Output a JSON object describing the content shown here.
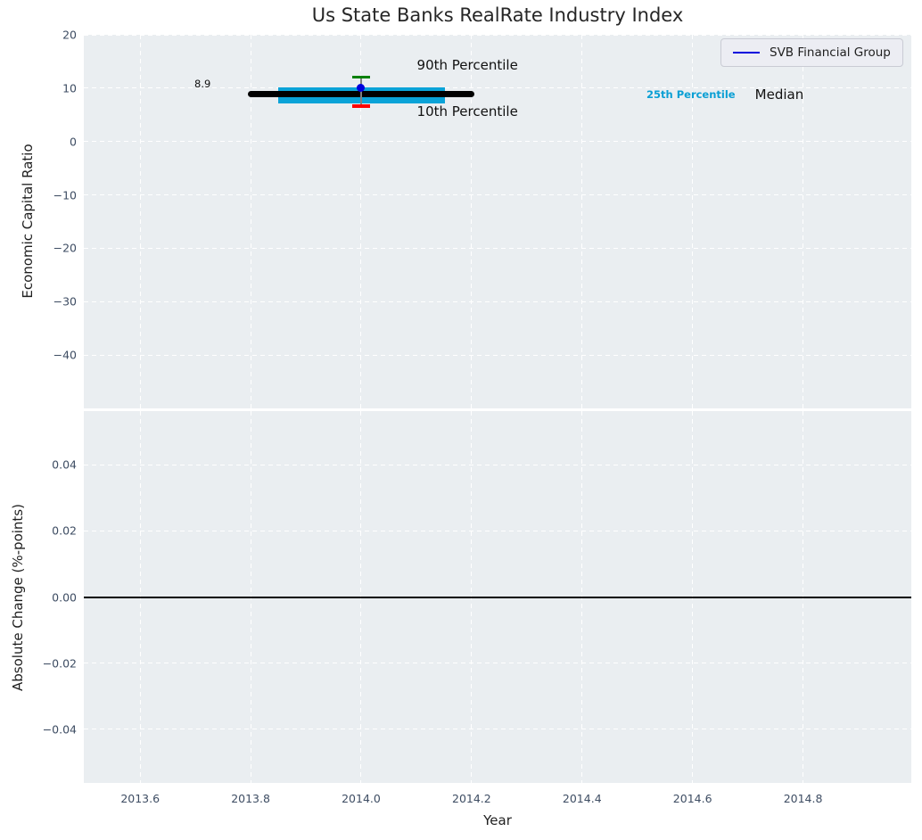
{
  "figure": {
    "title": "Us State Banks RealRate Industry Index"
  },
  "legend": {
    "label": "SVB Financial Group"
  },
  "colors": {
    "plot_background": "#eaeef1",
    "gridline": "#ffffff",
    "tick_label": "#3e4d63",
    "title_text": "#262626",
    "axis_label": "#1f1f1f",
    "annotation_text": "#111111",
    "median_line": "#000000",
    "iqr_band": "#0aa3d8",
    "p25_label": "#0a9fd4",
    "p90_cap": "#008000",
    "p10_cap": "#ff0000",
    "errorbar_line": "#808080",
    "svb_marker": "#0000dd",
    "zero_line": "#000000",
    "legend_bg": "#ecedf3",
    "legend_border": "#c9cbd4",
    "legend_text": "#1f1f1f"
  },
  "chart_data": [
    {
      "id": "top",
      "type": "line",
      "title": "Us State Banks RealRate Industry Index",
      "ylabel": "Economic Capital Ratio",
      "xlabel": "",
      "grid": true,
      "legend_position": "upper right",
      "xlim": [
        2013.498,
        2014.996
      ],
      "ylim": [
        -50,
        20
      ],
      "show_xtick_labels": false,
      "xticks": [
        {
          "v": 2013.6,
          "label": "2013.6"
        },
        {
          "v": 2013.8,
          "label": "2013.8"
        },
        {
          "v": 2014.0,
          "label": "2014.0"
        },
        {
          "v": 2014.2,
          "label": "2014.2"
        },
        {
          "v": 2014.4,
          "label": "2014.4"
        },
        {
          "v": 2014.6,
          "label": "2014.6"
        },
        {
          "v": 2014.8,
          "label": "2014.8"
        }
      ],
      "yticks": [
        {
          "v": 20,
          "label": "20"
        },
        {
          "v": 10,
          "label": "10"
        },
        {
          "v": 0,
          "label": "0"
        },
        {
          "v": -10,
          "label": "−10"
        },
        {
          "v": -20,
          "label": "−20"
        },
        {
          "v": -30,
          "label": "−30"
        },
        {
          "v": -40,
          "label": "−40"
        }
      ],
      "series": [
        {
          "name": "iqr-band-25th-75th",
          "kind": "band",
          "x0": 2013.85,
          "x1": 2014.152,
          "y0": 7.2,
          "y1": 10.2,
          "color_key": "iqr_band"
        },
        {
          "name": "median-line",
          "kind": "hline",
          "y": 8.9,
          "x0": 2013.795,
          "x1": 2014.205,
          "lw": 7,
          "rounded": true,
          "color_key": "median_line"
        },
        {
          "name": "percentile-10-90-errorbar",
          "kind": "errorbar",
          "x": 2014.0,
          "y0": 6.6,
          "y1": 12.1,
          "cap_halfwidth": 0.016,
          "line_color_key": "errorbar_line",
          "cap_top_color_key": "p90_cap",
          "cap_bottom_color_key": "p10_cap"
        },
        {
          "name": "svb-financial-group-point",
          "kind": "point",
          "x": 2014.0,
          "y": 10.05,
          "d": 9,
          "color_key": "svb_marker"
        }
      ],
      "annotations": [
        {
          "text": "8.9",
          "x": 2013.713,
          "y": 10.8,
          "size": 11.5,
          "weight": "400",
          "ha": "center",
          "color_key": "annotation_text"
        },
        {
          "text": "90th Percentile",
          "x": 2014.101,
          "y": 14.4,
          "size": 15,
          "weight": "400",
          "ha": "left",
          "color_key": "annotation_text"
        },
        {
          "text": "10th Percentile",
          "x": 2014.101,
          "y": 5.55,
          "size": 15,
          "weight": "400",
          "ha": "left",
          "color_key": "annotation_text"
        },
        {
          "text": "25th Percentile",
          "x": 2014.597,
          "y": 8.81,
          "size": 11.5,
          "weight": "700",
          "ha": "center",
          "color_key": "p25_label"
        },
        {
          "text": "Median",
          "x": 2014.757,
          "y": 8.81,
          "size": 15,
          "weight": "400",
          "ha": "center",
          "color_key": "annotation_text"
        }
      ]
    },
    {
      "id": "bottom",
      "type": "line",
      "ylabel": "Absolute Change (%-points)",
      "xlabel": "Year",
      "grid": true,
      "xlim": [
        2013.498,
        2014.996
      ],
      "ylim": [
        -0.0563,
        0.0563
      ],
      "show_xtick_labels": true,
      "xticks": [
        {
          "v": 2013.6,
          "label": "2013.6"
        },
        {
          "v": 2013.8,
          "label": "2013.8"
        },
        {
          "v": 2014.0,
          "label": "2014.0"
        },
        {
          "v": 2014.2,
          "label": "2014.2"
        },
        {
          "v": 2014.4,
          "label": "2014.4"
        },
        {
          "v": 2014.6,
          "label": "2014.6"
        },
        {
          "v": 2014.8,
          "label": "2014.8"
        }
      ],
      "yticks": [
        {
          "v": 0.04,
          "label": "0.04"
        },
        {
          "v": 0.02,
          "label": "0.02"
        },
        {
          "v": 0.0,
          "label": "0.00"
        },
        {
          "v": -0.02,
          "label": "−0.02"
        },
        {
          "v": -0.04,
          "label": "−0.04"
        }
      ],
      "series": [
        {
          "name": "zero-line",
          "kind": "hline",
          "y": 0.0,
          "x0": 2013.498,
          "x1": 2014.996,
          "lw": 2,
          "rounded": false,
          "color_key": "zero_line"
        }
      ],
      "annotations": []
    }
  ]
}
